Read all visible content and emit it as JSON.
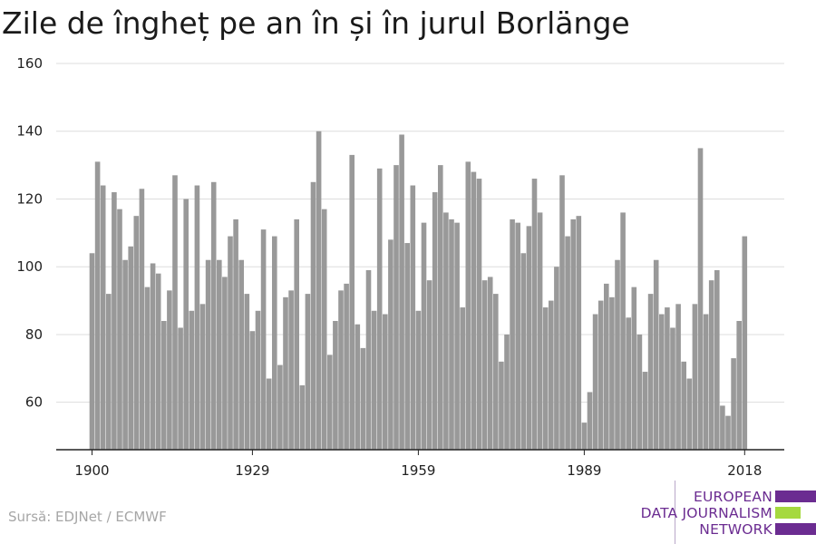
{
  "chart_data": {
    "type": "bar",
    "title": "Zile de îngheț pe an în și în jurul Borlänge",
    "xlabel": "",
    "ylabel": "",
    "x_start": 1900,
    "x": [
      1900,
      1901,
      1902,
      1903,
      1904,
      1905,
      1906,
      1907,
      1908,
      1909,
      1910,
      1911,
      1912,
      1913,
      1914,
      1915,
      1916,
      1917,
      1918,
      1919,
      1920,
      1921,
      1922,
      1923,
      1924,
      1925,
      1926,
      1927,
      1928,
      1929,
      1930,
      1931,
      1932,
      1933,
      1934,
      1935,
      1936,
      1937,
      1938,
      1939,
      1940,
      1941,
      1942,
      1943,
      1944,
      1945,
      1946,
      1947,
      1948,
      1949,
      1950,
      1951,
      1952,
      1953,
      1954,
      1955,
      1956,
      1957,
      1958,
      1959,
      1960,
      1961,
      1962,
      1963,
      1964,
      1965,
      1966,
      1967,
      1968,
      1969,
      1970,
      1971,
      1972,
      1973,
      1974,
      1975,
      1976,
      1977,
      1978,
      1979,
      1980,
      1981,
      1982,
      1983,
      1984,
      1985,
      1986,
      1987,
      1988,
      1989,
      1990,
      1991,
      1992,
      1993,
      1994,
      1995,
      1996,
      1997,
      1998,
      1999,
      2000,
      2001,
      2002,
      2003,
      2004,
      2005,
      2006,
      2007,
      2008,
      2009,
      2010,
      2011,
      2012,
      2013,
      2014,
      2015,
      2016,
      2017,
      2018
    ],
    "values": [
      104,
      131,
      124,
      92,
      122,
      117,
      102,
      106,
      115,
      123,
      94,
      101,
      98,
      84,
      93,
      127,
      82,
      120,
      87,
      124,
      89,
      102,
      125,
      102,
      97,
      109,
      114,
      102,
      92,
      81,
      87,
      111,
      67,
      109,
      71,
      91,
      93,
      114,
      65,
      92,
      125,
      140,
      117,
      74,
      84,
      93,
      95,
      133,
      83,
      76,
      99,
      87,
      129,
      86,
      108,
      130,
      139,
      107,
      124,
      87,
      113,
      96,
      122,
      130,
      116,
      114,
      113,
      88,
      131,
      128,
      126,
      96,
      97,
      92,
      72,
      80,
      114,
      113,
      104,
      112,
      126,
      116,
      88,
      90,
      100,
      127,
      109,
      114,
      115,
      54,
      63,
      86,
      90,
      95,
      91,
      102,
      116,
      85,
      94,
      80,
      69,
      92,
      102,
      86,
      88,
      82,
      89,
      72,
      67,
      89,
      135,
      86,
      96,
      99,
      59,
      56,
      73,
      84,
      109
    ],
    "ylim": [
      46,
      160
    ],
    "yticks": [
      60,
      80,
      100,
      120,
      140,
      160
    ],
    "xticks": [
      1900,
      1929,
      1959,
      1989,
      2018
    ],
    "grid": true,
    "bar_color": "#999999",
    "legend": "none"
  },
  "source": "Sursă: EDJNet / ECMWF",
  "logo": {
    "line1": "EUROPEAN",
    "line2": "DATA JOURNALISM",
    "line3": "NETWORK",
    "purple": "#6b2c91",
    "green": "#a5d93f"
  }
}
